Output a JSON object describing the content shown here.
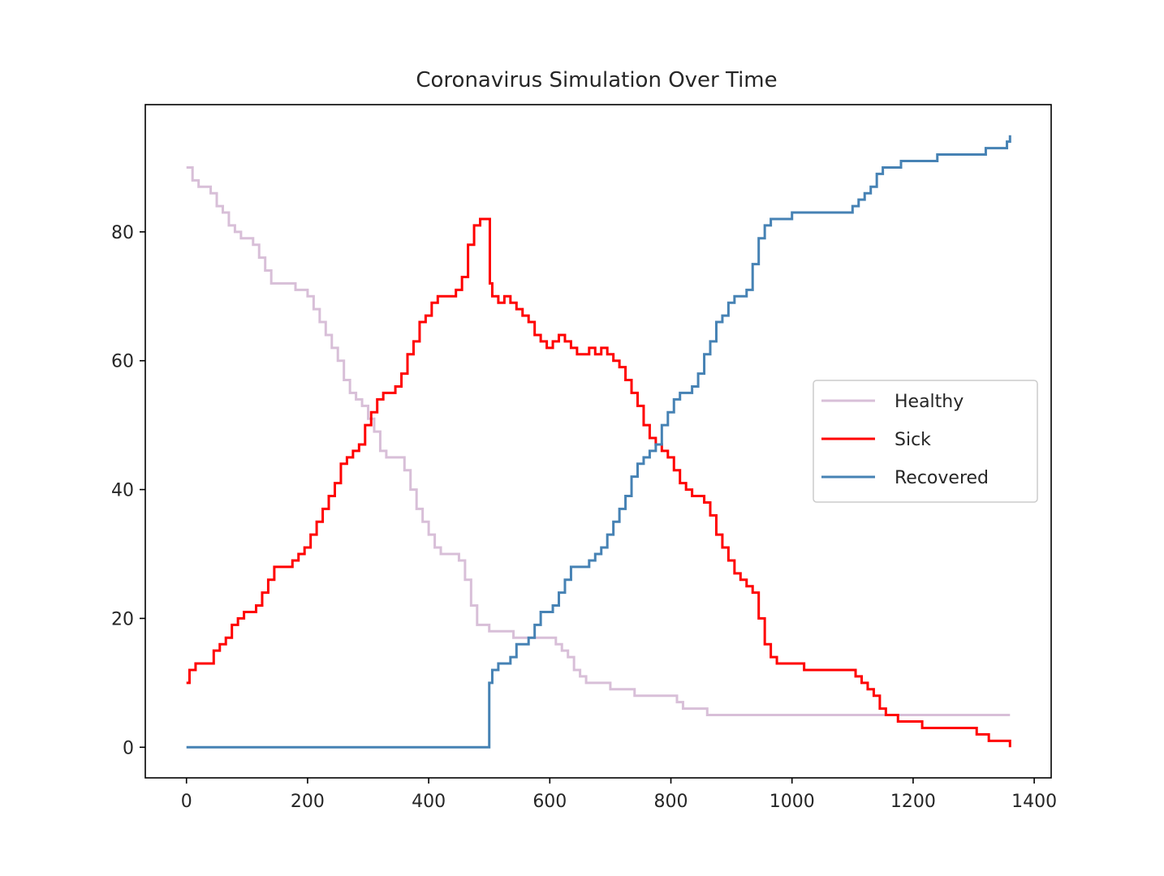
{
  "chart_data": {
    "type": "line",
    "title": "Coronavirus Simulation Over Time",
    "xlabel": "",
    "ylabel": "",
    "xlim": [
      -68,
      1428
    ],
    "ylim": [
      -4.75,
      99.75
    ],
    "xticks": [
      0,
      200,
      400,
      600,
      800,
      1000,
      1200,
      1400
    ],
    "yticks": [
      0,
      20,
      40,
      60,
      80
    ],
    "grid": false,
    "legend_position": "center-right",
    "series": [
      {
        "name": "Healthy",
        "color": "#d8bfd8",
        "x": [
          0,
          10,
          20,
          30,
          40,
          50,
          60,
          70,
          80,
          90,
          100,
          110,
          120,
          130,
          140,
          160,
          180,
          200,
          210,
          220,
          230,
          240,
          250,
          260,
          270,
          280,
          290,
          300,
          310,
          320,
          330,
          340,
          350,
          360,
          370,
          380,
          390,
          400,
          410,
          420,
          440,
          450,
          460,
          470,
          480,
          500,
          520,
          540,
          560,
          580,
          600,
          610,
          620,
          630,
          640,
          650,
          660,
          680,
          700,
          720,
          740,
          760,
          780,
          800,
          810,
          820,
          840,
          860,
          900,
          1000,
          1100,
          1200,
          1300,
          1360
        ],
        "y": [
          90,
          88,
          87,
          87,
          86,
          84,
          83,
          81,
          80,
          79,
          79,
          78,
          76,
          74,
          72,
          72,
          71,
          70,
          68,
          66,
          64,
          62,
          60,
          57,
          55,
          54,
          53,
          51,
          49,
          46,
          45,
          45,
          45,
          43,
          40,
          37,
          35,
          33,
          31,
          30,
          30,
          29,
          26,
          22,
          19,
          18,
          18,
          17,
          17,
          17,
          17,
          16,
          15,
          14,
          12,
          11,
          10,
          10,
          9,
          9,
          8,
          8,
          8,
          8,
          7,
          6,
          6,
          5,
          5,
          5,
          5,
          5,
          5,
          5
        ]
      },
      {
        "name": "Sick",
        "color": "#ff0000",
        "x": [
          0,
          5,
          15,
          25,
          45,
          55,
          65,
          75,
          85,
          95,
          105,
          115,
          125,
          135,
          145,
          160,
          175,
          185,
          195,
          205,
          215,
          225,
          235,
          245,
          255,
          265,
          275,
          285,
          295,
          305,
          315,
          325,
          335,
          345,
          355,
          365,
          375,
          385,
          395,
          405,
          415,
          425,
          445,
          455,
          465,
          475,
          485,
          495,
          499,
          501,
          505,
          515,
          525,
          535,
          545,
          555,
          565,
          575,
          585,
          595,
          605,
          615,
          625,
          635,
          645,
          655,
          665,
          675,
          685,
          695,
          705,
          715,
          725,
          735,
          745,
          755,
          765,
          775,
          785,
          795,
          805,
          815,
          825,
          835,
          845,
          855,
          865,
          875,
          885,
          895,
          905,
          915,
          925,
          935,
          945,
          955,
          965,
          975,
          985,
          1000,
          1020,
          1060,
          1090,
          1105,
          1115,
          1125,
          1135,
          1145,
          1155,
          1165,
          1175,
          1195,
          1215,
          1235,
          1265,
          1295,
          1305,
          1315,
          1325,
          1345,
          1355,
          1360
        ],
        "y": [
          10,
          12,
          13,
          13,
          15,
          16,
          17,
          19,
          20,
          21,
          21,
          22,
          24,
          26,
          28,
          28,
          29,
          30,
          31,
          33,
          35,
          37,
          39,
          41,
          44,
          45,
          46,
          47,
          50,
          52,
          54,
          55,
          55,
          56,
          58,
          61,
          63,
          66,
          67,
          69,
          70,
          70,
          71,
          73,
          78,
          81,
          82,
          82,
          82,
          72,
          70,
          69,
          70,
          69,
          68,
          67,
          66,
          64,
          63,
          62,
          63,
          64,
          63,
          62,
          61,
          61,
          62,
          61,
          62,
          61,
          60,
          59,
          57,
          55,
          53,
          50,
          48,
          47,
          46,
          45,
          43,
          41,
          40,
          39,
          39,
          38,
          36,
          33,
          31,
          29,
          27,
          26,
          25,
          24,
          20,
          16,
          14,
          13,
          13,
          13,
          12,
          12,
          12,
          11,
          10,
          9,
          8,
          6,
          5,
          5,
          4,
          4,
          3,
          3,
          3,
          3,
          2,
          2,
          1,
          1,
          1,
          0
        ]
      },
      {
        "name": "Recovered",
        "color": "#4682b4",
        "x": [
          0,
          499,
          500,
          505,
          515,
          525,
          535,
          545,
          555,
          565,
          575,
          585,
          595,
          605,
          615,
          625,
          635,
          645,
          655,
          665,
          675,
          685,
          695,
          705,
          715,
          725,
          735,
          745,
          755,
          765,
          775,
          785,
          795,
          805,
          815,
          825,
          835,
          845,
          855,
          865,
          875,
          885,
          895,
          905,
          915,
          925,
          935,
          945,
          955,
          965,
          975,
          985,
          1000,
          1020,
          1040,
          1060,
          1080,
          1100,
          1110,
          1120,
          1130,
          1140,
          1150,
          1160,
          1180,
          1200,
          1220,
          1240,
          1260,
          1280,
          1300,
          1320,
          1340,
          1355,
          1360
        ],
        "y": [
          0,
          0,
          10,
          12,
          13,
          13,
          14,
          16,
          16,
          17,
          19,
          21,
          21,
          22,
          24,
          26,
          28,
          28,
          28,
          29,
          30,
          31,
          33,
          35,
          37,
          39,
          42,
          44,
          45,
          46,
          47,
          50,
          52,
          54,
          55,
          55,
          56,
          58,
          61,
          63,
          66,
          67,
          69,
          70,
          70,
          71,
          75,
          79,
          81,
          82,
          82,
          82,
          83,
          83,
          83,
          83,
          83,
          84,
          85,
          86,
          87,
          89,
          90,
          90,
          91,
          91,
          91,
          92,
          92,
          92,
          92,
          93,
          93,
          94,
          95
        ]
      }
    ]
  }
}
